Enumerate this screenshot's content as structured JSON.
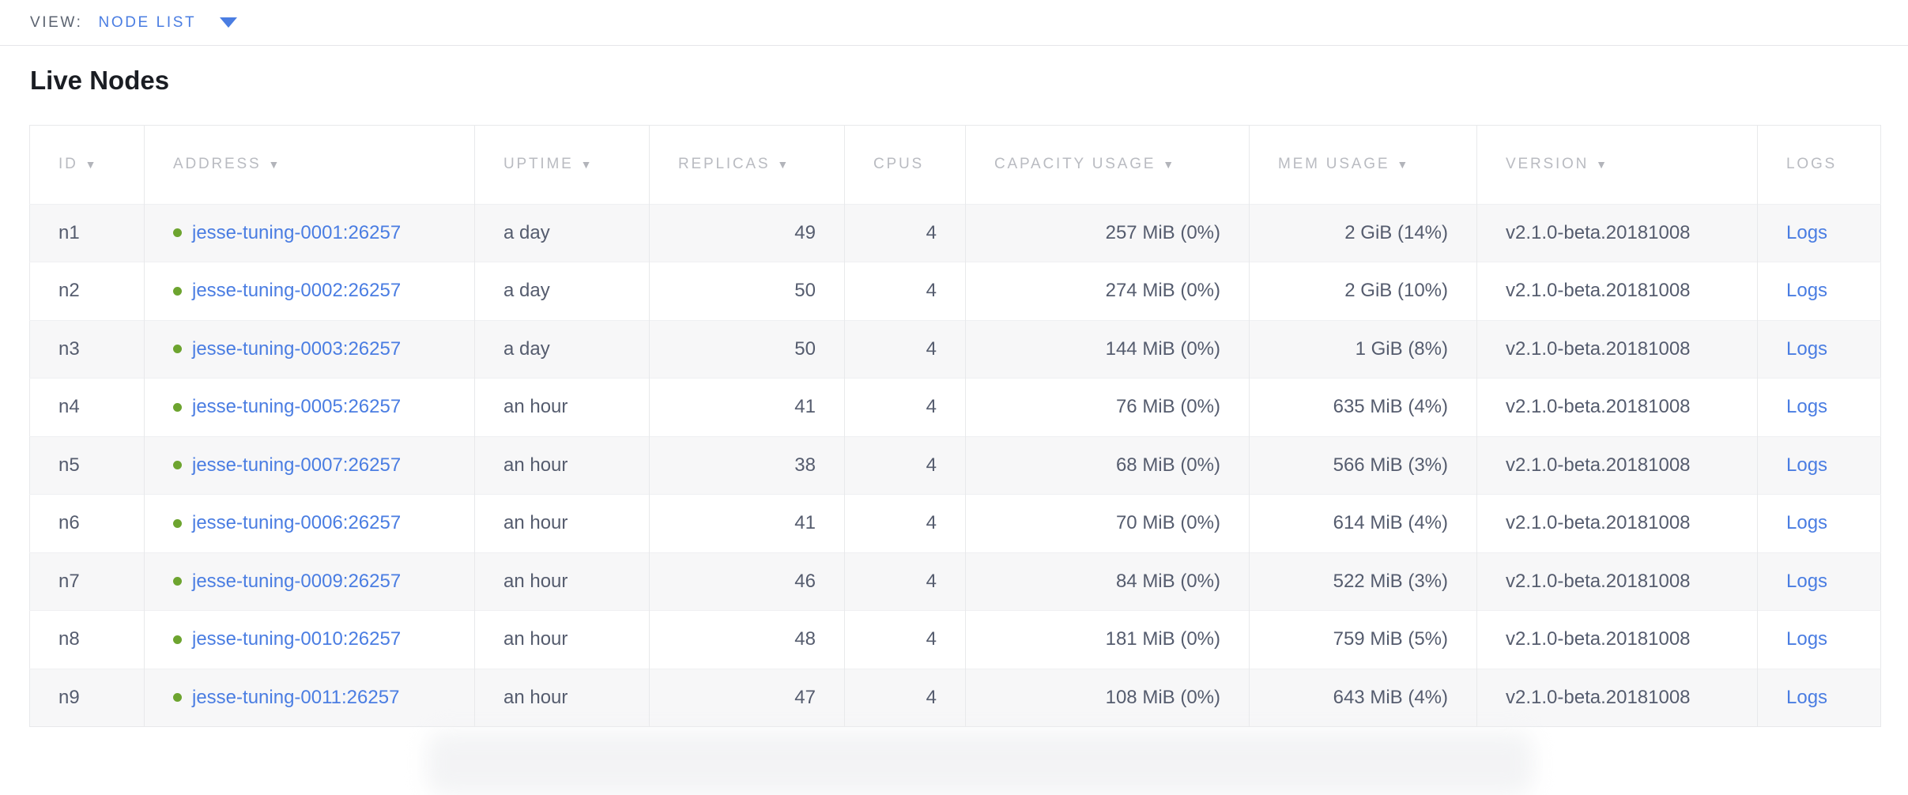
{
  "view_bar": {
    "label": "VIEW:",
    "selected_view": "NODE LIST"
  },
  "page": {
    "title": "Live Nodes"
  },
  "icons": {
    "sort_arrow": "▼",
    "status_dot": "live-status-dot",
    "chevron": "chevron-down-icon"
  },
  "colors": {
    "link_blue": "#4a7de2",
    "live_green": "#6da42f",
    "header_gray": "#b9bbc1",
    "cell_text": "#555c6e",
    "row_stripe": "#f7f7f8",
    "border": "#e8e9eb"
  },
  "table": {
    "columns": [
      {
        "key": "id",
        "label": "ID",
        "sortable": true,
        "align": "left"
      },
      {
        "key": "address",
        "label": "ADDRESS",
        "sortable": true,
        "align": "left"
      },
      {
        "key": "uptime",
        "label": "UPTIME",
        "sortable": true,
        "align": "left"
      },
      {
        "key": "replicas",
        "label": "REPLICAS",
        "sortable": true,
        "align": "right"
      },
      {
        "key": "cpus",
        "label": "CPUS",
        "sortable": false,
        "align": "right"
      },
      {
        "key": "capacity_usage",
        "label": "CAPACITY USAGE",
        "sortable": true,
        "align": "right"
      },
      {
        "key": "mem_usage",
        "label": "MEM USAGE",
        "sortable": true,
        "align": "right"
      },
      {
        "key": "version",
        "label": "VERSION",
        "sortable": true,
        "align": "left"
      },
      {
        "key": "logs",
        "label": "LOGS",
        "sortable": false,
        "align": "left"
      }
    ],
    "rows": [
      {
        "id": "n1",
        "address": "jesse-tuning-0001:26257",
        "status": "live",
        "uptime": "a day",
        "replicas": "49",
        "cpus": "4",
        "capacity_usage": "257 MiB (0%)",
        "mem_usage": "2 GiB (14%)",
        "version": "v2.1.0-beta.20181008",
        "logs": "Logs"
      },
      {
        "id": "n2",
        "address": "jesse-tuning-0002:26257",
        "status": "live",
        "uptime": "a day",
        "replicas": "50",
        "cpus": "4",
        "capacity_usage": "274 MiB (0%)",
        "mem_usage": "2 GiB (10%)",
        "version": "v2.1.0-beta.20181008",
        "logs": "Logs"
      },
      {
        "id": "n3",
        "address": "jesse-tuning-0003:26257",
        "status": "live",
        "uptime": "a day",
        "replicas": "50",
        "cpus": "4",
        "capacity_usage": "144 MiB (0%)",
        "mem_usage": "1 GiB (8%)",
        "version": "v2.1.0-beta.20181008",
        "logs": "Logs"
      },
      {
        "id": "n4",
        "address": "jesse-tuning-0005:26257",
        "status": "live",
        "uptime": "an hour",
        "replicas": "41",
        "cpus": "4",
        "capacity_usage": "76 MiB (0%)",
        "mem_usage": "635 MiB (4%)",
        "version": "v2.1.0-beta.20181008",
        "logs": "Logs"
      },
      {
        "id": "n5",
        "address": "jesse-tuning-0007:26257",
        "status": "live",
        "uptime": "an hour",
        "replicas": "38",
        "cpus": "4",
        "capacity_usage": "68 MiB (0%)",
        "mem_usage": "566 MiB (3%)",
        "version": "v2.1.0-beta.20181008",
        "logs": "Logs"
      },
      {
        "id": "n6",
        "address": "jesse-tuning-0006:26257",
        "status": "live",
        "uptime": "an hour",
        "replicas": "41",
        "cpus": "4",
        "capacity_usage": "70 MiB (0%)",
        "mem_usage": "614 MiB (4%)",
        "version": "v2.1.0-beta.20181008",
        "logs": "Logs"
      },
      {
        "id": "n7",
        "address": "jesse-tuning-0009:26257",
        "status": "live",
        "uptime": "an hour",
        "replicas": "46",
        "cpus": "4",
        "capacity_usage": "84 MiB (0%)",
        "mem_usage": "522 MiB (3%)",
        "version": "v2.1.0-beta.20181008",
        "logs": "Logs"
      },
      {
        "id": "n8",
        "address": "jesse-tuning-0010:26257",
        "status": "live",
        "uptime": "an hour",
        "replicas": "48",
        "cpus": "4",
        "capacity_usage": "181 MiB (0%)",
        "mem_usage": "759 MiB (5%)",
        "version": "v2.1.0-beta.20181008",
        "logs": "Logs"
      },
      {
        "id": "n9",
        "address": "jesse-tuning-0011:26257",
        "status": "live",
        "uptime": "an hour",
        "replicas": "47",
        "cpus": "4",
        "capacity_usage": "108 MiB (0%)",
        "mem_usage": "643 MiB (4%)",
        "version": "v2.1.0-beta.20181008",
        "logs": "Logs"
      }
    ]
  }
}
